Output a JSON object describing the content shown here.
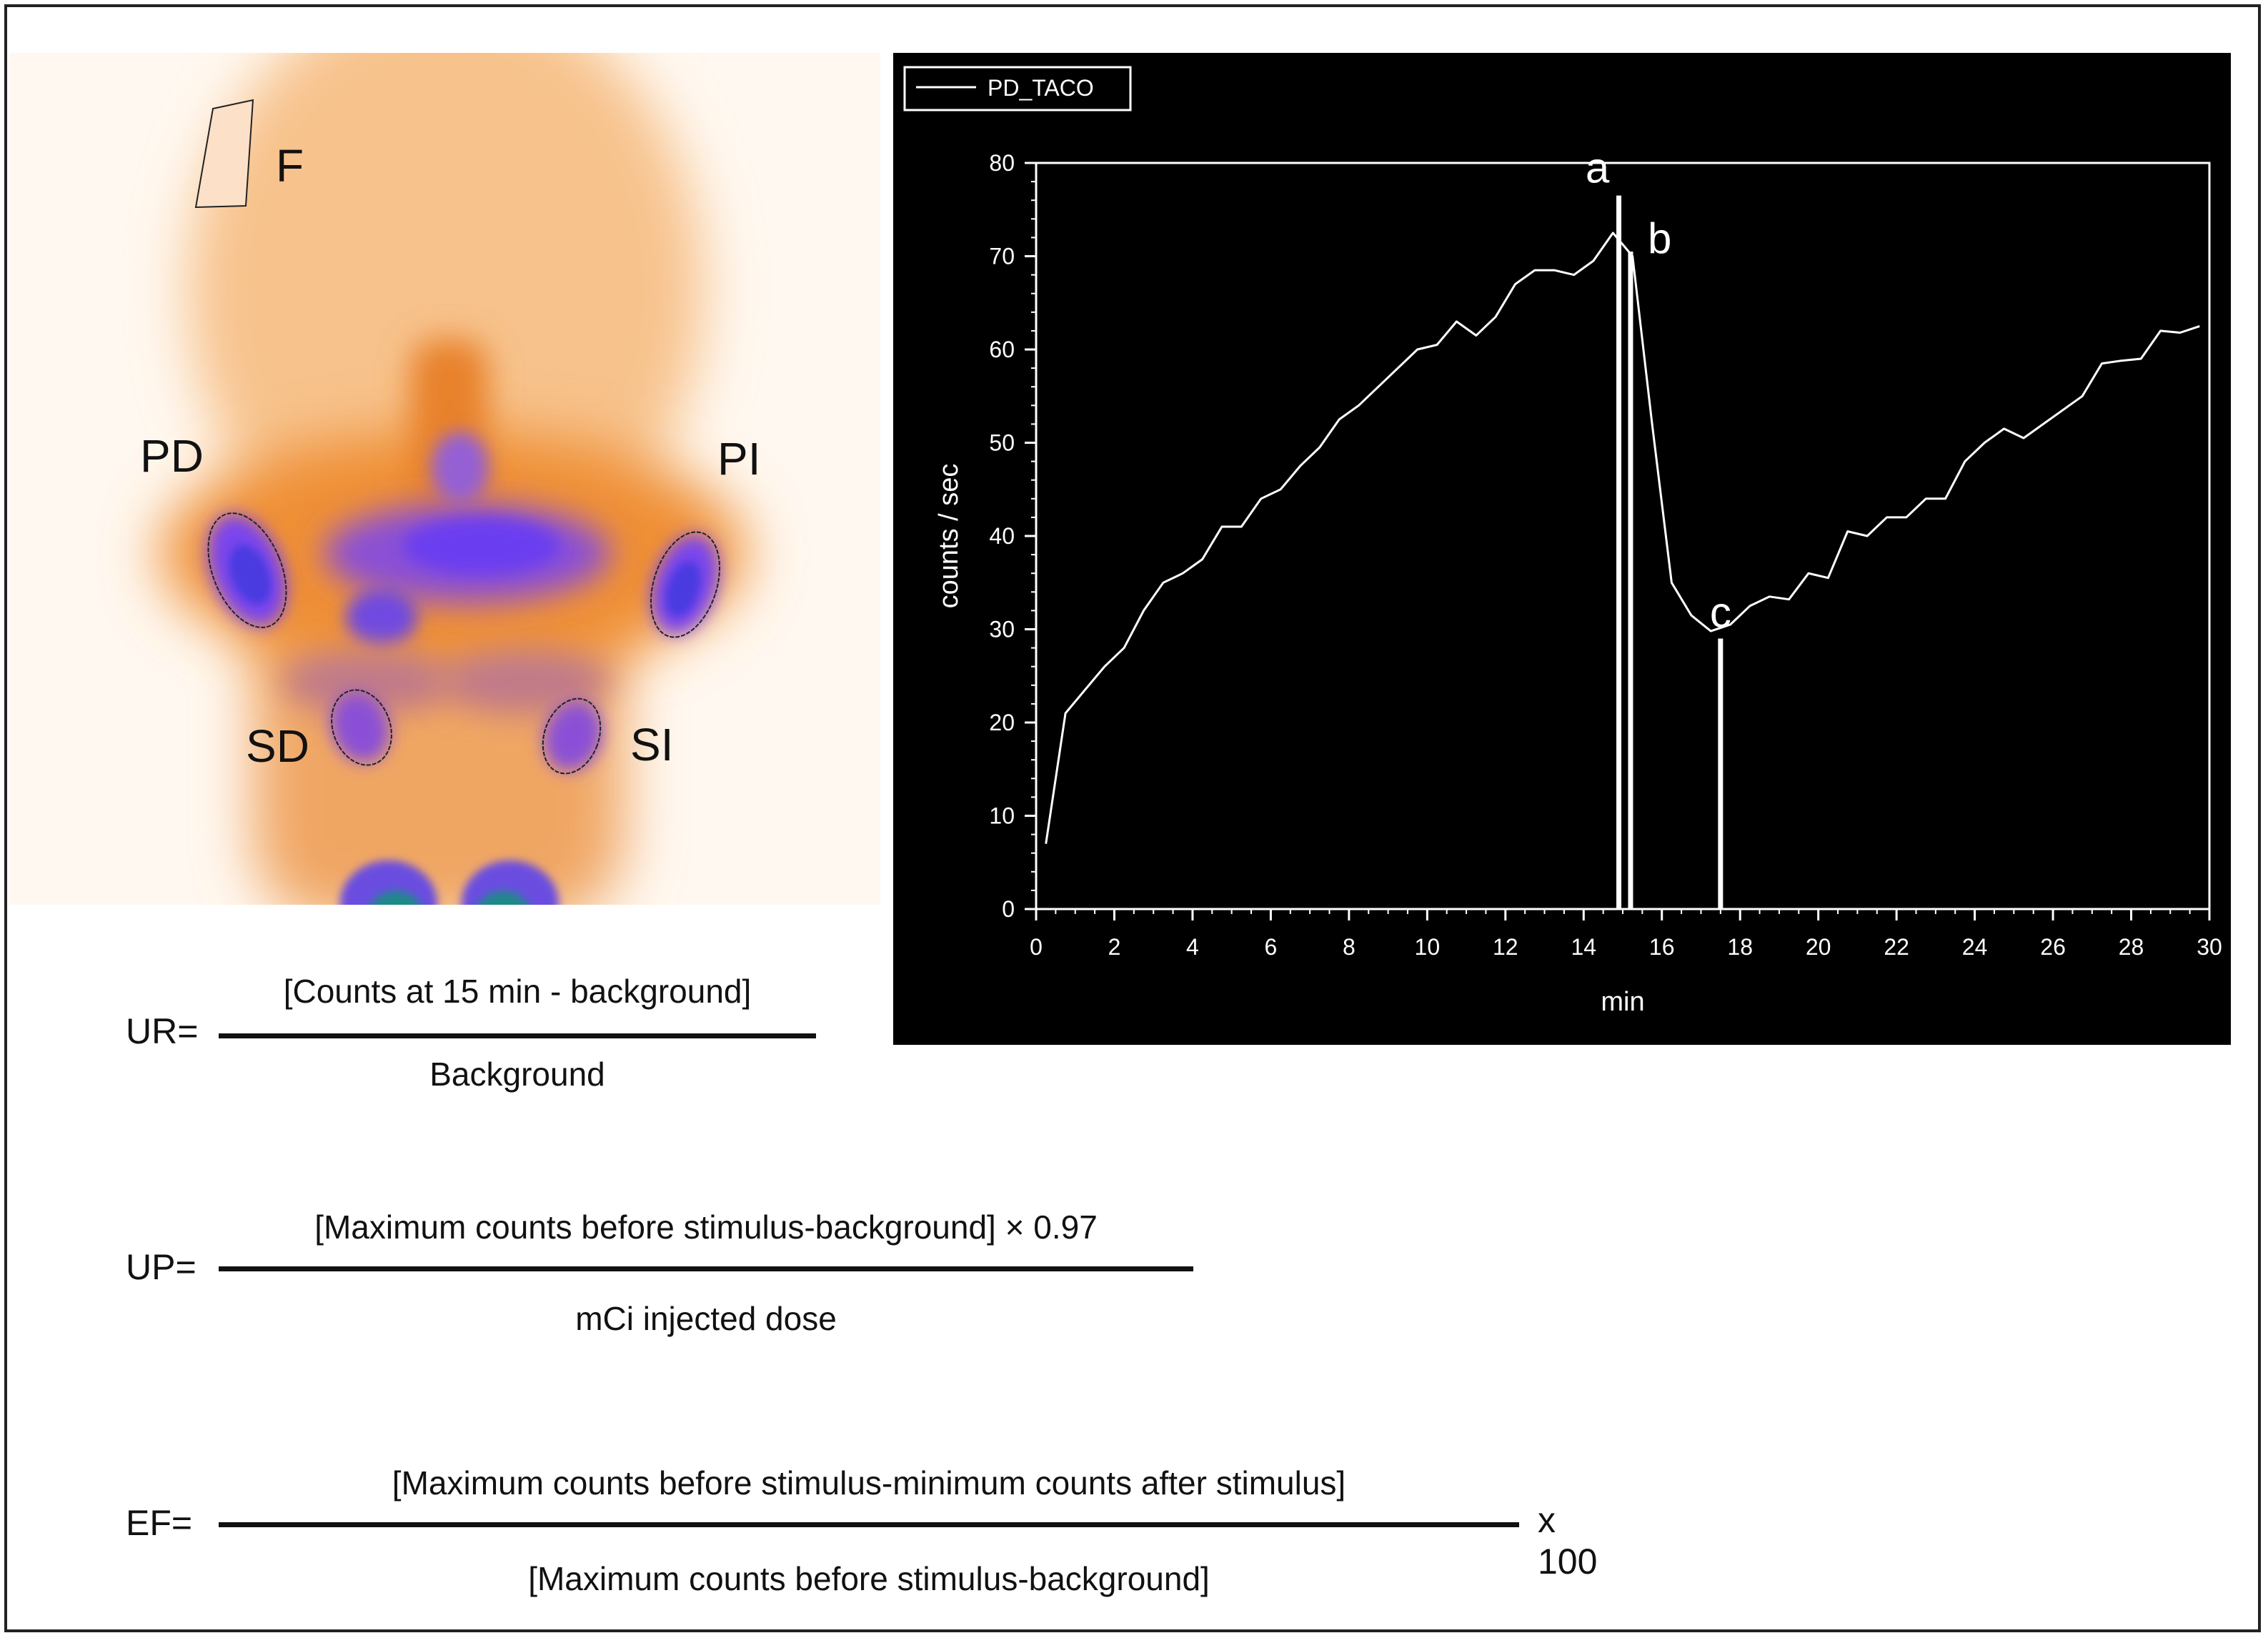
{
  "scan": {
    "labels": {
      "F": "F",
      "PD": "PD",
      "PI": "PI",
      "SD": "SD",
      "SI": "SI"
    }
  },
  "chart_data": {
    "type": "line",
    "legend": {
      "entries": [
        "PD_TACO"
      ],
      "position": "top-left"
    },
    "xlabel": "min",
    "ylabel": "counts / sec",
    "xlim": [
      0,
      30
    ],
    "ylim": [
      0,
      80
    ],
    "xticks": [
      0,
      2,
      4,
      6,
      8,
      10,
      12,
      14,
      16,
      18,
      20,
      22,
      24,
      26,
      28,
      30
    ],
    "yticks": [
      0,
      10,
      20,
      30,
      40,
      50,
      60,
      70,
      80
    ],
    "grid": false,
    "colors": {
      "background": "#000000",
      "line": "#ffffff"
    },
    "series": [
      {
        "name": "PD_TACO",
        "x": [
          0.25,
          0.75,
          1.25,
          1.75,
          2.25,
          2.75,
          3.25,
          3.75,
          4.25,
          4.75,
          5.25,
          5.75,
          6.25,
          6.75,
          7.25,
          7.75,
          8.25,
          8.75,
          9.25,
          9.75,
          10.25,
          10.75,
          11.25,
          11.75,
          12.25,
          12.75,
          13.25,
          13.75,
          14.25,
          14.75,
          15.25,
          15.75,
          16.25,
          16.75,
          17.25,
          17.75,
          18.25,
          18.75,
          19.25,
          19.75,
          20.25,
          20.75,
          21.25,
          21.75,
          22.25,
          22.75,
          23.25,
          23.75,
          24.25,
          24.75,
          25.25,
          25.75,
          26.25,
          26.75,
          27.25,
          27.75,
          28.25,
          28.75,
          29.25,
          29.75
        ],
        "y": [
          7,
          21,
          23.5,
          26,
          28,
          32,
          35,
          36,
          37.5,
          41,
          41,
          44,
          45,
          47.5,
          49.5,
          52.5,
          54,
          56,
          58,
          60,
          60.5,
          63,
          61.5,
          63.5,
          67,
          68.5,
          68.5,
          68,
          69.5,
          72.5,
          70,
          52,
          35,
          31.5,
          29.8,
          30.5,
          32.5,
          33.5,
          33.2,
          36,
          35.5,
          40.5,
          40,
          42,
          42,
          44,
          44,
          48,
          50,
          51.5,
          50.5,
          52,
          53.5,
          55,
          58.5,
          58.8,
          59,
          62,
          61.8,
          62.5
        ]
      }
    ],
    "annotations": [
      {
        "label": "a",
        "x": 14.9,
        "y_top": 76.5
      },
      {
        "label": "b",
        "x": 15.2,
        "y_top": 70.5
      },
      {
        "label": "c",
        "x": 17.5,
        "y_top": 29
      }
    ]
  },
  "formulas": {
    "ur": {
      "label": "UR=",
      "numerator": "[Counts at 15 min - background]",
      "denominator": "Background"
    },
    "up": {
      "label": "UP=",
      "numerator": "[Maximum counts before stimulus-background] × 0.97",
      "denominator": "mCi injected dose"
    },
    "ef": {
      "label": "EF=",
      "numerator": "[Maximum counts before stimulus-minimum counts after stimulus]",
      "denominator": "[Maximum counts before stimulus-background]",
      "multiplier": "x 100"
    }
  }
}
